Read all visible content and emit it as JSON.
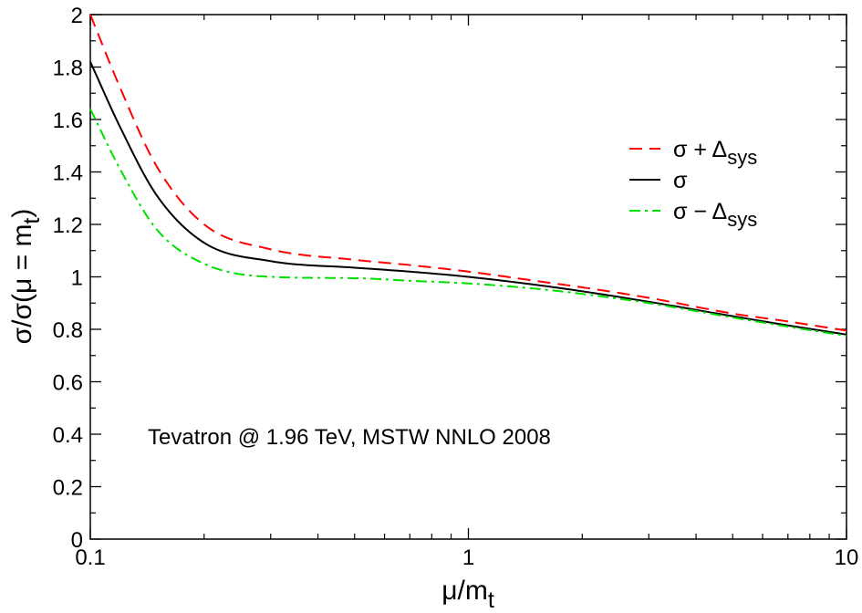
{
  "chart_data": {
    "type": "line",
    "xscale": "log",
    "xlim": [
      0.1,
      10
    ],
    "ylim": [
      0,
      2
    ],
    "x_ticks": [
      {
        "value": 0.1,
        "label": "0.1"
      },
      {
        "value": 1,
        "label": "1"
      },
      {
        "value": 10,
        "label": "10"
      }
    ],
    "y_ticks": [
      {
        "value": 0,
        "label": "0"
      },
      {
        "value": 0.2,
        "label": "0.2"
      },
      {
        "value": 0.4,
        "label": "0.4"
      },
      {
        "value": 0.6,
        "label": "0.6"
      },
      {
        "value": 0.8,
        "label": "0.8"
      },
      {
        "value": 1,
        "label": "1"
      },
      {
        "value": 1.2,
        "label": "1.2"
      },
      {
        "value": 1.4,
        "label": "1.4"
      },
      {
        "value": 1.6,
        "label": "1.6"
      },
      {
        "value": 1.8,
        "label": "1.8"
      },
      {
        "value": 2,
        "label": "2"
      }
    ],
    "xlabel": {
      "main": "μ/m",
      "sub": "t"
    },
    "ylabel": {
      "main": "σ/σ(μ = m",
      "sub": "t",
      "tail": ")"
    },
    "annotation": "Tevatron @ 1.96 TeV, MSTW NNLO 2008",
    "legend_position": "top-right",
    "x": [
      0.1,
      0.12,
      0.15,
      0.2,
      0.3,
      0.5,
      0.7,
      1,
      1.5,
      2,
      3,
      5,
      7,
      10
    ],
    "series": [
      {
        "name": "σ + Δsys",
        "legend_main": "σ + Δ",
        "legend_sub": "sys",
        "color": "#ff0000",
        "dash": "dashed",
        "values": [
          2.0,
          1.72,
          1.42,
          1.2,
          1.105,
          1.065,
          1.045,
          1.02,
          0.985,
          0.96,
          0.92,
          0.86,
          0.83,
          0.795
        ]
      },
      {
        "name": "σ",
        "legend_main": "σ",
        "legend_sub": "",
        "color": "#000000",
        "dash": "solid",
        "values": [
          1.82,
          1.57,
          1.31,
          1.13,
          1.06,
          1.035,
          1.02,
          1.0,
          0.97,
          0.945,
          0.905,
          0.85,
          0.815,
          0.78
        ]
      },
      {
        "name": "σ − Δsys",
        "legend_main": "σ − Δ",
        "legend_sub": "sys",
        "color": "#00e000",
        "dash": "dashdot",
        "values": [
          1.64,
          1.41,
          1.18,
          1.05,
          1.0,
          0.995,
          0.985,
          0.975,
          0.955,
          0.935,
          0.9,
          0.845,
          0.81,
          0.775
        ]
      }
    ]
  }
}
